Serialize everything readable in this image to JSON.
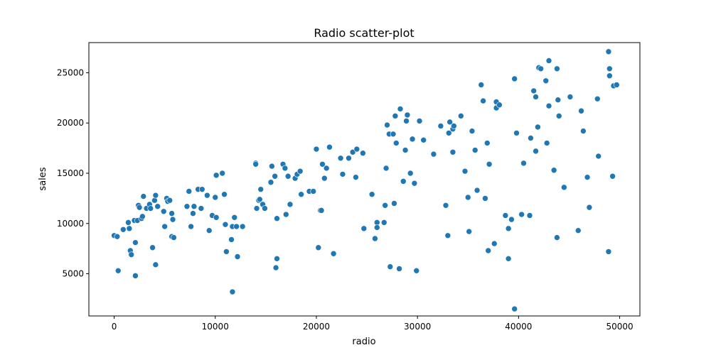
{
  "chart_data": {
    "type": "scatter",
    "title": "Radio scatter-plot",
    "xlabel": "radio",
    "ylabel": "sales",
    "xlim": [
      -2500,
      52000
    ],
    "ylim": [
      800,
      28000
    ],
    "xticks": [
      0,
      10000,
      20000,
      30000,
      40000,
      50000
    ],
    "yticks": [
      5000,
      10000,
      15000,
      20000,
      25000
    ],
    "xtick_labels": [
      "0",
      "10000",
      "20000",
      "30000",
      "40000",
      "50000"
    ],
    "ytick_labels": [
      "5000",
      "10000",
      "15000",
      "20000",
      "25000"
    ],
    "grid": false,
    "color": "#1f77b4",
    "points": [
      [
        0,
        8800
      ],
      [
        300,
        8700
      ],
      [
        400,
        5300
      ],
      [
        900,
        9400
      ],
      [
        1400,
        10100
      ],
      [
        1500,
        9500
      ],
      [
        1600,
        7300
      ],
      [
        1700,
        6900
      ],
      [
        2000,
        10300
      ],
      [
        2100,
        8100
      ],
      [
        2100,
        4800
      ],
      [
        2300,
        10300
      ],
      [
        2400,
        11800
      ],
      [
        2500,
        11600
      ],
      [
        2700,
        10500
      ],
      [
        2800,
        10700
      ],
      [
        2900,
        12700
      ],
      [
        3200,
        11500
      ],
      [
        3500,
        11900
      ],
      [
        3600,
        11500
      ],
      [
        3800,
        7600
      ],
      [
        4000,
        12300
      ],
      [
        4100,
        12800
      ],
      [
        4100,
        5900
      ],
      [
        4300,
        11700
      ],
      [
        4900,
        11200
      ],
      [
        5000,
        9700
      ],
      [
        5200,
        12500
      ],
      [
        5300,
        12200
      ],
      [
        5500,
        12300
      ],
      [
        5700,
        8700
      ],
      [
        5700,
        11000
      ],
      [
        5800,
        10400
      ],
      [
        5900,
        8600
      ],
      [
        7200,
        11700
      ],
      [
        7400,
        13200
      ],
      [
        7600,
        9700
      ],
      [
        7800,
        11000
      ],
      [
        7900,
        11700
      ],
      [
        8300,
        13400
      ],
      [
        8600,
        11500
      ],
      [
        8700,
        13400
      ],
      [
        9200,
        12800
      ],
      [
        9400,
        9300
      ],
      [
        9700,
        10800
      ],
      [
        10000,
        12600
      ],
      [
        10100,
        10600
      ],
      [
        10100,
        14800
      ],
      [
        10700,
        15000
      ],
      [
        10900,
        12900
      ],
      [
        11000,
        9900
      ],
      [
        11100,
        7200
      ],
      [
        11600,
        8400
      ],
      [
        11700,
        3200
      ],
      [
        11700,
        9700
      ],
      [
        11900,
        10600
      ],
      [
        12100,
        9700
      ],
      [
        12200,
        6700
      ],
      [
        12700,
        9700
      ],
      [
        14000,
        16000
      ],
      [
        14000,
        15900
      ],
      [
        14100,
        11500
      ],
      [
        14300,
        12300
      ],
      [
        14400,
        12400
      ],
      [
        14500,
        13400
      ],
      [
        14700,
        11900
      ],
      [
        14900,
        11500
      ],
      [
        15500,
        14100
      ],
      [
        15600,
        15700
      ],
      [
        15900,
        14700
      ],
      [
        16000,
        5600
      ],
      [
        16100,
        6500
      ],
      [
        16100,
        10500
      ],
      [
        16700,
        15900
      ],
      [
        16900,
        15500
      ],
      [
        17000,
        10900
      ],
      [
        17200,
        14700
      ],
      [
        17400,
        11900
      ],
      [
        17900,
        14500
      ],
      [
        18100,
        14900
      ],
      [
        18400,
        15200
      ],
      [
        18500,
        12900
      ],
      [
        19300,
        13200
      ],
      [
        19700,
        13200
      ],
      [
        20000,
        17400
      ],
      [
        20200,
        7600
      ],
      [
        20400,
        11300
      ],
      [
        20500,
        11300
      ],
      [
        20600,
        15900
      ],
      [
        20800,
        14500
      ],
      [
        21000,
        15500
      ],
      [
        21300,
        17600
      ],
      [
        21700,
        7000
      ],
      [
        22400,
        16500
      ],
      [
        22600,
        14900
      ],
      [
        23200,
        16500
      ],
      [
        23600,
        17100
      ],
      [
        23900,
        14600
      ],
      [
        24000,
        17400
      ],
      [
        24600,
        17000
      ],
      [
        24700,
        9500
      ],
      [
        25500,
        12900
      ],
      [
        25800,
        8500
      ],
      [
        26000,
        10100
      ],
      [
        26000,
        9600
      ],
      [
        26700,
        10100
      ],
      [
        26800,
        11800
      ],
      [
        26900,
        15500
      ],
      [
        27000,
        19800
      ],
      [
        27200,
        18900
      ],
      [
        27300,
        5700
      ],
      [
        27600,
        18900
      ],
      [
        27700,
        12000
      ],
      [
        27800,
        20700
      ],
      [
        27900,
        18000
      ],
      [
        28200,
        5500
      ],
      [
        28300,
        21400
      ],
      [
        28600,
        14200
      ],
      [
        28800,
        17300
      ],
      [
        28900,
        20200
      ],
      [
        29000,
        20800
      ],
      [
        29300,
        15000
      ],
      [
        29500,
        18400
      ],
      [
        29700,
        14000
      ],
      [
        29900,
        5300
      ],
      [
        30200,
        20200
      ],
      [
        30600,
        18300
      ],
      [
        31600,
        16900
      ],
      [
        32300,
        19700
      ],
      [
        32800,
        11800
      ],
      [
        33000,
        8800
      ],
      [
        33100,
        19000
      ],
      [
        33200,
        20100
      ],
      [
        33500,
        19400
      ],
      [
        33500,
        17100
      ],
      [
        33600,
        19700
      ],
      [
        34300,
        20700
      ],
      [
        34700,
        15200
      ],
      [
        35000,
        12600
      ],
      [
        35100,
        9200
      ],
      [
        35400,
        19200
      ],
      [
        35700,
        17300
      ],
      [
        35900,
        13300
      ],
      [
        36300,
        23800
      ],
      [
        36500,
        22200
      ],
      [
        36700,
        12500
      ],
      [
        36900,
        18000
      ],
      [
        37000,
        7300
      ],
      [
        37100,
        15900
      ],
      [
        37600,
        8000
      ],
      [
        37800,
        21500
      ],
      [
        37800,
        22100
      ],
      [
        38100,
        21800
      ],
      [
        38700,
        10800
      ],
      [
        39000,
        6500
      ],
      [
        39000,
        9500
      ],
      [
        39300,
        10400
      ],
      [
        39600,
        24400
      ],
      [
        39600,
        1500
      ],
      [
        39800,
        19000
      ],
      [
        40300,
        10900
      ],
      [
        40500,
        16000
      ],
      [
        41100,
        10800
      ],
      [
        41200,
        18500
      ],
      [
        41500,
        23200
      ],
      [
        41700,
        22600
      ],
      [
        41700,
        17200
      ],
      [
        41900,
        19600
      ],
      [
        42000,
        25500
      ],
      [
        42200,
        25400
      ],
      [
        42700,
        24200
      ],
      [
        42800,
        18000
      ],
      [
        43000,
        26200
      ],
      [
        43000,
        21700
      ],
      [
        43500,
        15300
      ],
      [
        43800,
        25400
      ],
      [
        43800,
        8600
      ],
      [
        43900,
        22300
      ],
      [
        44000,
        20700
      ],
      [
        44500,
        13600
      ],
      [
        45100,
        22600
      ],
      [
        45900,
        9300
      ],
      [
        46200,
        21200
      ],
      [
        46400,
        19200
      ],
      [
        46800,
        14600
      ],
      [
        47000,
        11600
      ],
      [
        47800,
        22400
      ],
      [
        47900,
        16700
      ],
      [
        48900,
        27100
      ],
      [
        48900,
        7200
      ],
      [
        49000,
        24700
      ],
      [
        49000,
        25400
      ],
      [
        49300,
        14700
      ],
      [
        49400,
        23700
      ],
      [
        49700,
        23800
      ]
    ]
  }
}
